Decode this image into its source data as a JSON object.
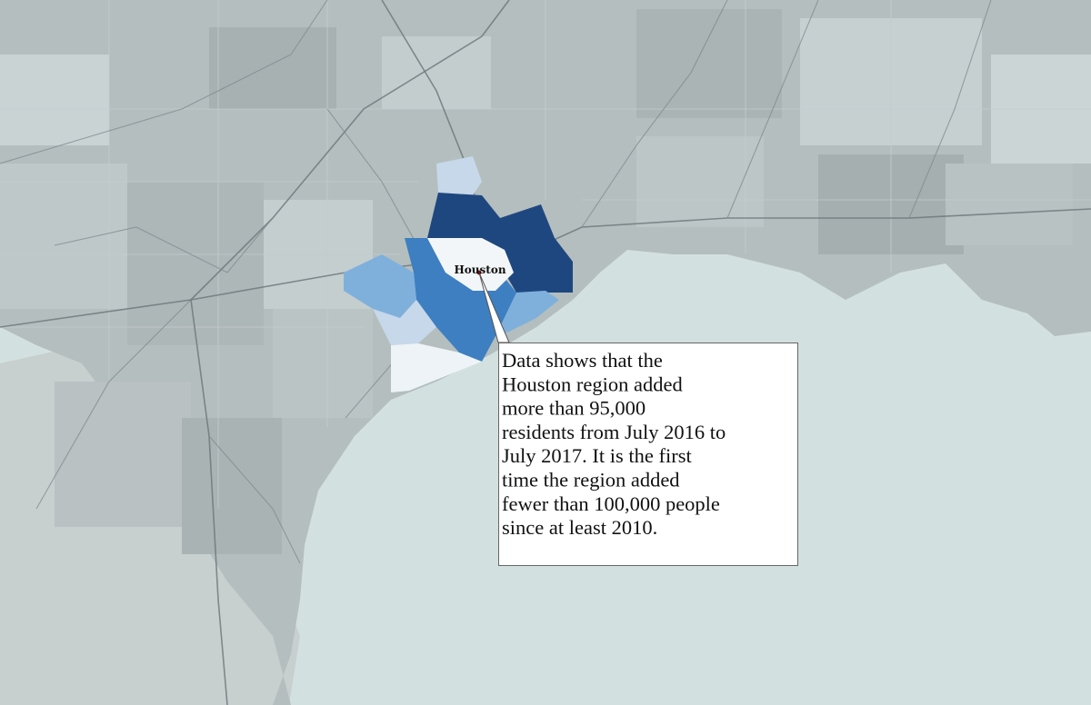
{
  "map": {
    "city_label": "Houston",
    "annotation": {
      "lines": [
        "Data shows that the",
        "Houston region added",
        "more than 95,000",
        "residents from July 2016 to",
        "July 2017. It is the first",
        "time the region added",
        "fewer than 100,000 people",
        "since at least 2010."
      ]
    }
  }
}
